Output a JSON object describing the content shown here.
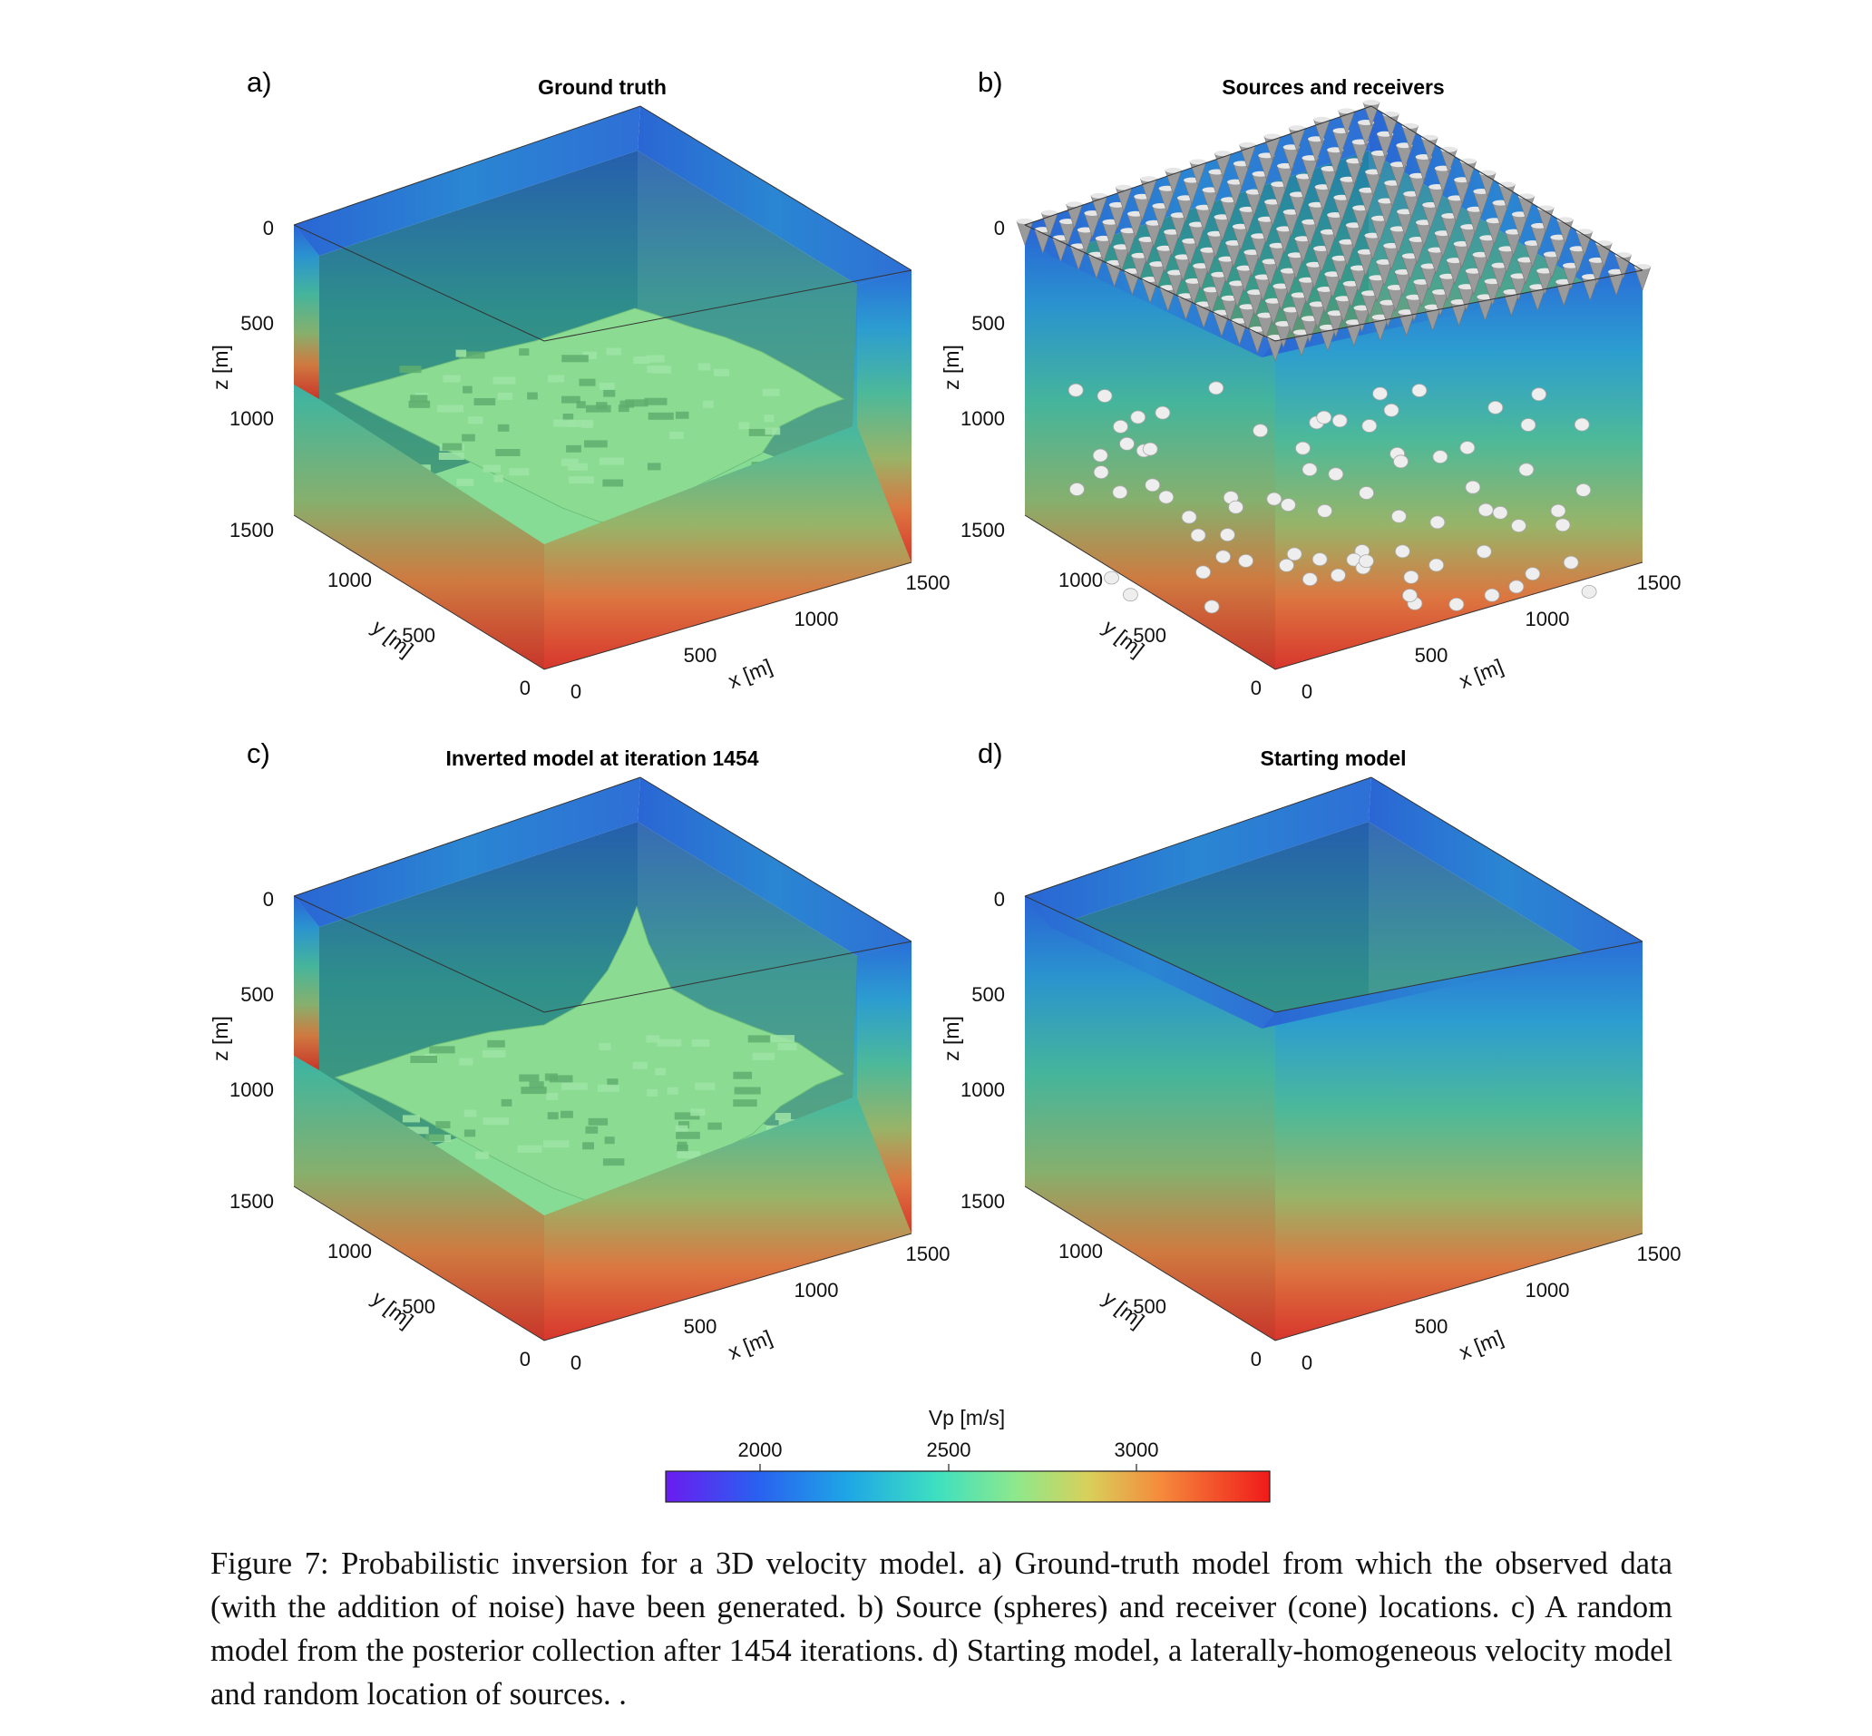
{
  "panels": [
    {
      "letter": "a)",
      "title": "Ground truth",
      "variant": "truth"
    },
    {
      "letter": "b)",
      "title": "Sources and receivers",
      "variant": "sources"
    },
    {
      "letter": "c)",
      "title": "Inverted model at iteration 1454",
      "variant": "inverted"
    },
    {
      "letter": "d)",
      "title": "Starting model",
      "variant": "starting"
    }
  ],
  "axes": {
    "z_label": "z [m]",
    "y_label": "y [m]",
    "x_label": "x [m]",
    "z_ticks": [
      "0",
      "500",
      "1000",
      "1500"
    ],
    "y_ticks": [
      "1000",
      "500",
      "0"
    ],
    "x_ticks": [
      "0",
      "500",
      "1000",
      "1500"
    ],
    "range_m": [
      0,
      1500
    ]
  },
  "colorbar": {
    "label": "Vp [m/s]",
    "ticks": [
      "2000",
      "2500",
      "3000"
    ],
    "colormap": "rainbow (purple-blue-cyan-green-yellow-orange-red)"
  },
  "caption": "Figure 7: Probabilistic inversion for a 3D velocity model. a) Ground-truth model from which the observed data (with the addition of noise) have been generated. b) Source (spheres) and receiver (cone) locations. c) A random model from the posterior collection after 1454 iterations. d) Starting model, a laterally-homogeneous velocity model and random location of sources. ."
}
